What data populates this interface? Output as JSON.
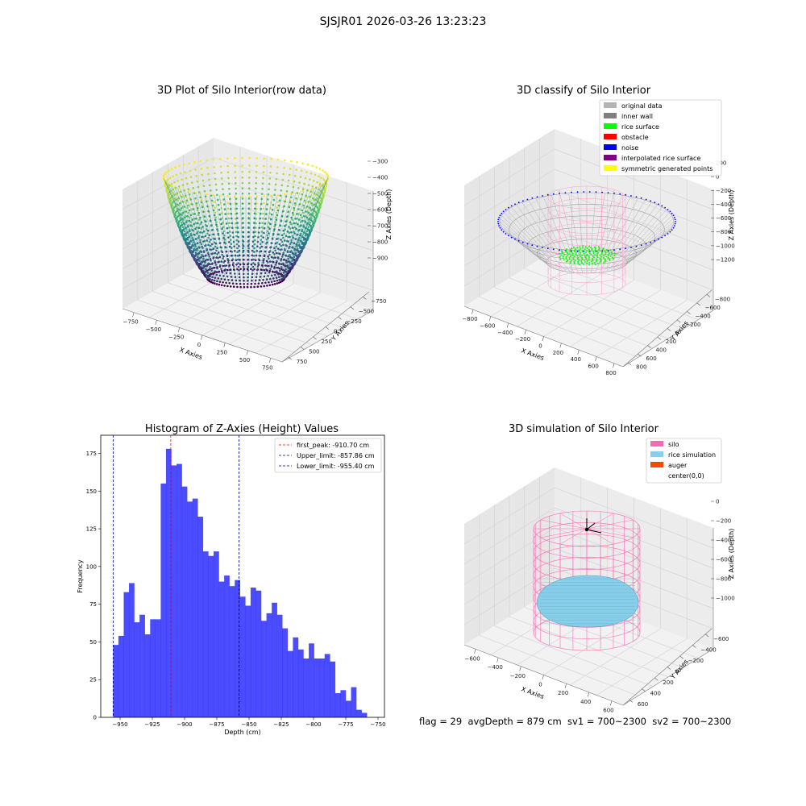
{
  "suptitle": "SJSJR01 2026-03-26 13:23:23",
  "bottom_text": "flag = 29  avgDepth = 879 cm  sv1 = 700~2300  sv2 = 700~2300",
  "panels": {
    "raw": {
      "title": "3D Plot of Silo Interior(row data)",
      "xlabel": "X Axies",
      "ylabel": "Y Axies",
      "zlabel": "Z Axies (Depth)",
      "xticks": [
        "−750",
        "−500",
        "−250",
        "0",
        "250",
        "500",
        "750"
      ],
      "yticks": [
        "750",
        "500",
        "250",
        "0",
        "−250",
        "−500",
        "−750"
      ],
      "zticks": [
        "−300",
        "−400",
        "−500",
        "−600",
        "−700",
        "−800",
        "−900"
      ],
      "colormap": "viridis"
    },
    "classify": {
      "title": "3D classify of Silo Interior",
      "xlabel": "X Axies",
      "ylabel": "Y Axies",
      "zlabel": "Z Axies (Depth)",
      "xticks": [
        "−800",
        "−600",
        "−400",
        "−200",
        "0",
        "200",
        "400",
        "600",
        "800"
      ],
      "yticks": [
        "800",
        "600",
        "400",
        "200",
        "0",
        "−200",
        "−400",
        "−600",
        "−800"
      ],
      "zticks": [
        "200",
        "0",
        "−200",
        "−400",
        "−600",
        "−800",
        "−1000",
        "−1200"
      ],
      "legend": [
        {
          "label": "original data",
          "color": "#b4b4b4"
        },
        {
          "label": "inner wall",
          "color": "#808080"
        },
        {
          "label": "rice surface",
          "color": "#00ff00"
        },
        {
          "label": "obstacle",
          "color": "#ff0000"
        },
        {
          "label": "noise",
          "color": "#0000ff"
        },
        {
          "label": "interpolated rice surface",
          "color": "#800080"
        },
        {
          "label": "symmetric generated points",
          "color": "#ffff00"
        }
      ]
    },
    "simulation": {
      "title": "3D simulation of Silo Interior",
      "xlabel": "X Axies",
      "ylabel": "Y Axies",
      "zlabel": "Z Axies (Depth)",
      "xticks": [
        "−600",
        "−400",
        "−200",
        "0",
        "200",
        "400",
        "600"
      ],
      "yticks": [
        "600",
        "400",
        "200",
        "0",
        "−200",
        "−400",
        "−600"
      ],
      "zticks": [
        "0",
        "−200",
        "−400",
        "−600",
        "−800",
        "−1000"
      ],
      "legend": [
        {
          "label": "silo",
          "color": "#ff69b4"
        },
        {
          "label": "rice simulation",
          "color": "#87ceeb"
        },
        {
          "label": "auger",
          "color": "#ff4500"
        },
        {
          "label": "center(0,0)",
          "color": "#ffffff"
        }
      ]
    }
  },
  "chart_data": {
    "type": "bar",
    "title": "Histogram of Z-Axies (Height) Values",
    "xlabel": "Depth (cm)",
    "ylabel": "Frequency",
    "xlim": [
      -965,
      -745
    ],
    "ylim": [
      0,
      187
    ],
    "xticks": [
      -950,
      -925,
      -900,
      -875,
      -850,
      -825,
      -800,
      -775,
      -750
    ],
    "yticks": [
      0,
      25,
      50,
      75,
      100,
      125,
      150,
      175
    ],
    "bin_start": -955.4,
    "bin_width": 4.1,
    "values": [
      48,
      54,
      83,
      89,
      63,
      68,
      55,
      65,
      65,
      155,
      178,
      167,
      168,
      153,
      143,
      145,
      133,
      110,
      107,
      110,
      90,
      94,
      87,
      91,
      80,
      74,
      86,
      84,
      64,
      69,
      76,
      68,
      59,
      44,
      53,
      45,
      39,
      49,
      39,
      39,
      42,
      37,
      16,
      18,
      11,
      20,
      5,
      3
    ],
    "bar_color": "#0000ff",
    "lines": [
      {
        "label": "first_peak: -910.70 cm",
        "x": -910.7,
        "color": "#ff0000"
      },
      {
        "label": "Upper_limit: -857.86 cm",
        "x": -857.86,
        "color": "#00008b"
      },
      {
        "label": "Lower_limit: -955.40 cm",
        "x": -955.4,
        "color": "#00008b"
      }
    ],
    "legend_position": "upper right"
  }
}
